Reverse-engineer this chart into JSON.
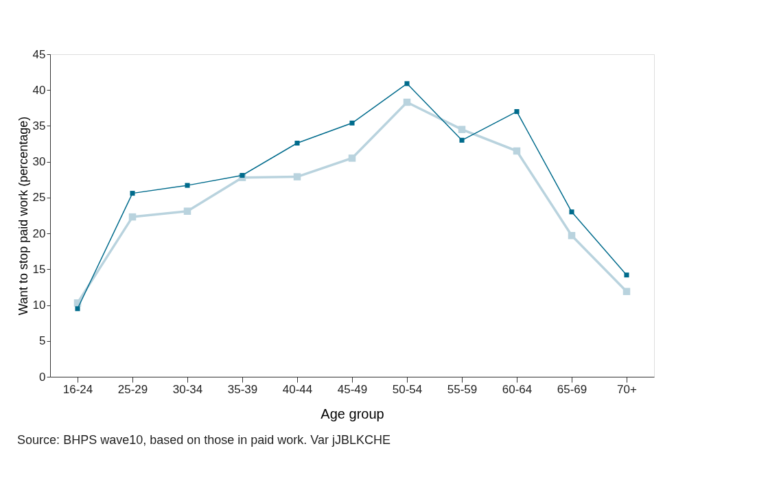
{
  "chart_data": {
    "type": "line",
    "xlabel": "Age group",
    "ylabel": "Want to stop paid work (percentage)",
    "categories": [
      "16-24",
      "25-29",
      "30-34",
      "35-39",
      "40-44",
      "45-49",
      "50-54",
      "55-59",
      "60-64",
      "65-69",
      "70+"
    ],
    "series": [
      {
        "color": "#b9d3de",
        "values": [
          10.3,
          22.3,
          23.1,
          27.8,
          27.9,
          30.5,
          38.3,
          34.5,
          31.5,
          19.7,
          11.9
        ]
      },
      {
        "color": "#006b8c",
        "values": [
          9.5,
          25.6,
          26.7,
          28.1,
          32.6,
          35.4,
          40.9,
          33.0,
          37.0,
          23.0,
          14.2
        ]
      }
    ],
    "ylim": [
      0,
      45
    ],
    "yticks": [
      0,
      5,
      10,
      15,
      20,
      25,
      30,
      35,
      40,
      45
    ],
    "marker": "square",
    "line_style": "solid",
    "annotations": [
      "Source: BHPS wave10, based on those in paid work. Var jJBLKCHE"
    ]
  }
}
